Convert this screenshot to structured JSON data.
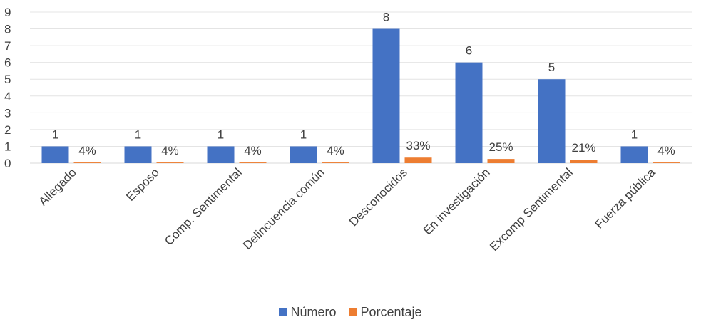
{
  "chart_data": {
    "type": "bar",
    "categories": [
      "Allegado",
      "Esposo",
      "Comp. Sentimental",
      "Delincuencia común",
      "Desconocidos",
      "En investigación",
      "Excomp Sentimental",
      "Fuerza pública"
    ],
    "series": [
      {
        "name": "Número",
        "values": [
          1,
          1,
          1,
          1,
          8,
          6,
          5,
          1
        ],
        "labels": [
          "1",
          "1",
          "1",
          "1",
          "8",
          "6",
          "5",
          "1"
        ],
        "color": "#4472C4"
      },
      {
        "name": "Porcentaje",
        "values": [
          0.04,
          0.04,
          0.04,
          0.04,
          0.33,
          0.25,
          0.21,
          0.04
        ],
        "labels": [
          "4%",
          "4%",
          "4%",
          "4%",
          "33%",
          "25%",
          "21%",
          "4%"
        ],
        "color": "#ED7D31"
      }
    ],
    "ylim": [
      0,
      9
    ],
    "yticks": [
      "0",
      "1",
      "2",
      "3",
      "4",
      "5",
      "6",
      "7",
      "8",
      "9"
    ],
    "grid": true,
    "legend_position": "bottom"
  }
}
